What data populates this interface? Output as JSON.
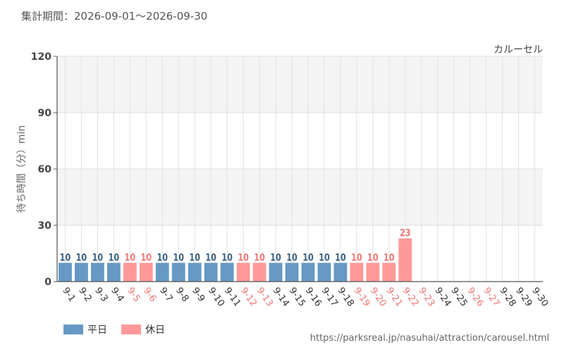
{
  "header": {
    "period": "集計期間：2026-09-01～2026-09-30"
  },
  "chart_data": {
    "type": "bar",
    "attraction": "カルーセル",
    "ylabel": "待ち時間（分）min",
    "ylim": [
      0,
      120
    ],
    "yticks": [
      0,
      30,
      60,
      90,
      120
    ],
    "categories": [
      "9-1",
      "9-2",
      "9-3",
      "9-4",
      "9-5",
      "9-6",
      "9-7",
      "9-8",
      "9-9",
      "9-10",
      "9-11",
      "9-12",
      "9-13",
      "9-14",
      "9-15",
      "9-16",
      "9-17",
      "9-18",
      "9-19",
      "9-20",
      "9-21",
      "9-22",
      "9-23",
      "9-24",
      "9-25",
      "9-26",
      "9-27",
      "9-28",
      "9-29",
      "9-30"
    ],
    "values": [
      10,
      10,
      10,
      10,
      10,
      10,
      10,
      10,
      10,
      10,
      10,
      10,
      10,
      10,
      10,
      10,
      10,
      10,
      10,
      10,
      10,
      23,
      null,
      null,
      null,
      null,
      null,
      null,
      null,
      null
    ],
    "day_type": [
      "weekday",
      "weekday",
      "weekday",
      "weekday",
      "holiday",
      "holiday",
      "weekday",
      "weekday",
      "weekday",
      "weekday",
      "weekday",
      "holiday",
      "holiday",
      "weekday",
      "weekday",
      "weekday",
      "weekday",
      "weekday",
      "holiday",
      "holiday",
      "holiday",
      "holiday",
      "holiday",
      "weekday",
      "weekday",
      "holiday",
      "holiday",
      "weekday",
      "weekday",
      "weekday"
    ],
    "series": [
      {
        "name": "平日",
        "color": "#6699c4"
      },
      {
        "name": "休日",
        "color": "#ff9999"
      }
    ],
    "label_colors": {
      "weekday": "#3a5f80",
      "holiday": "#ee7777"
    },
    "grid": true,
    "legend": "bottom-left"
  },
  "legend": {
    "weekday_label": "平日",
    "holiday_label": "休日"
  },
  "footer": {
    "source": "https://parksreal.jp/nasuhai/attraction/carousel.html"
  }
}
